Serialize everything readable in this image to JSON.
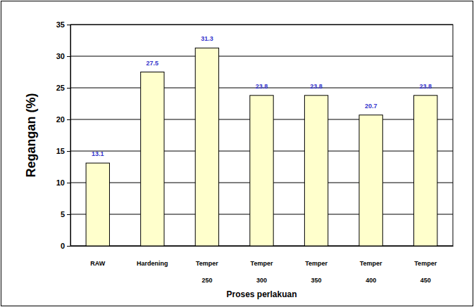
{
  "chart_data": {
    "type": "bar",
    "x_label": "Proses perlakuan",
    "y_label": "Regangan (%)",
    "categories": [
      "RAW",
      "Hardening",
      "Temper 250",
      "Temper 300",
      "Temper 350",
      "Temper 400",
      "Temper 450"
    ],
    "values": [
      13.1,
      27.5,
      31.3,
      23.8,
      23.8,
      20.7,
      23.8
    ],
    "color": "#ffffcc",
    "ylim": [
      0,
      35
    ],
    "yticks": [
      0,
      5,
      10,
      15,
      20,
      25,
      30,
      35
    ],
    "grid": true,
    "data_labels": true
  }
}
